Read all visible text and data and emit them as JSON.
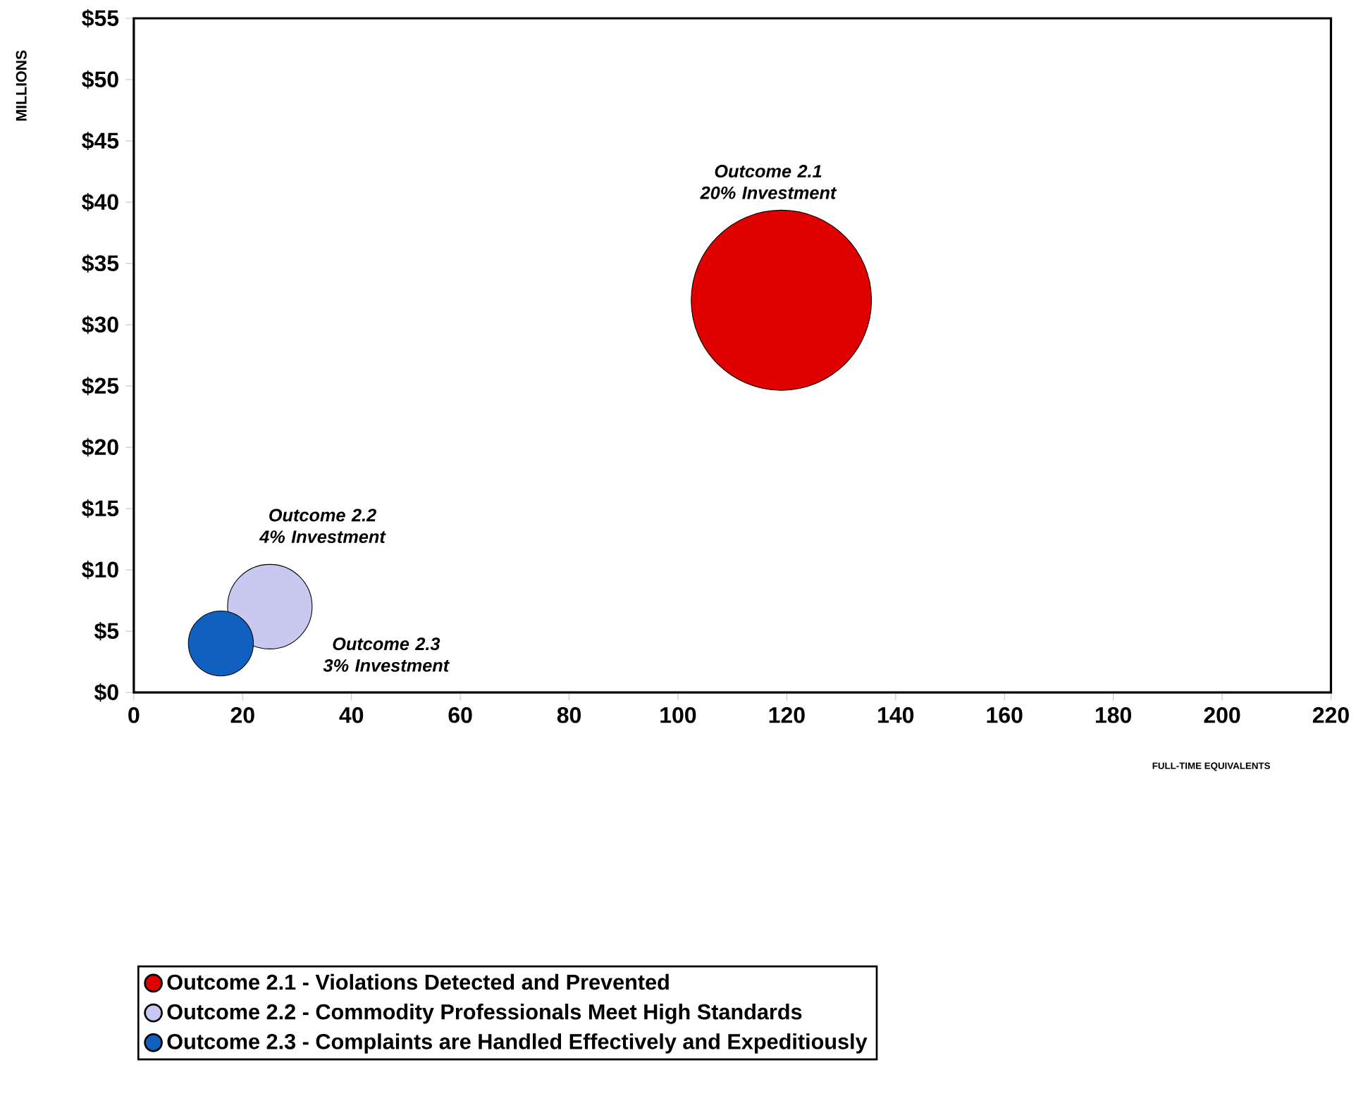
{
  "chart_data": {
    "type": "bubble",
    "xlabel": "FULL-TIME EQUIVALENTS",
    "ylabel": "MILLIONS",
    "xlim": [
      0,
      220
    ],
    "xticks": [
      0,
      20,
      40,
      60,
      80,
      100,
      120,
      140,
      160,
      180,
      200,
      220
    ],
    "ylim": [
      0,
      55
    ],
    "yticks": [
      {
        "value": 0,
        "label": "$0"
      },
      {
        "value": 5,
        "label": "$5"
      },
      {
        "value": 10,
        "label": "$10"
      },
      {
        "value": 15,
        "label": "$15"
      },
      {
        "value": 20,
        "label": "$20"
      },
      {
        "value": 25,
        "label": "$25"
      },
      {
        "value": 30,
        "label": "$30"
      },
      {
        "value": 35,
        "label": "$35"
      },
      {
        "value": 40,
        "label": "$40"
      },
      {
        "value": 45,
        "label": "$45"
      },
      {
        "value": 50,
        "label": "$50"
      },
      {
        "value": 55,
        "label": "$55"
      }
    ],
    "series": [
      {
        "name": "Outcome 2.1 - Violations Detected and Prevented",
        "color": "#e00000",
        "x": [
          119
        ],
        "values": [
          32
        ],
        "sizes": [
          1
        ]
      },
      {
        "name": "Outcome 2.2 - Commodity Professionals Meet High Standards",
        "color": "#c8c8f0",
        "x": [
          25
        ],
        "values": [
          7
        ],
        "sizes": [
          0.22
        ]
      },
      {
        "name": "Outcome 2.3 - Complaints are Handled Effectively and Expeditiously",
        "color": "#1060c0",
        "x": [
          16
        ],
        "values": [
          4
        ],
        "sizes": [
          0.13
        ]
      }
    ],
    "annotations": [
      "Outcome 2.1 20% Investment",
      "Outcome 2.2 4% Investment",
      "Outcome 2.3 3% Investment"
    ],
    "legend": "bottom",
    "marker": "circle"
  }
}
